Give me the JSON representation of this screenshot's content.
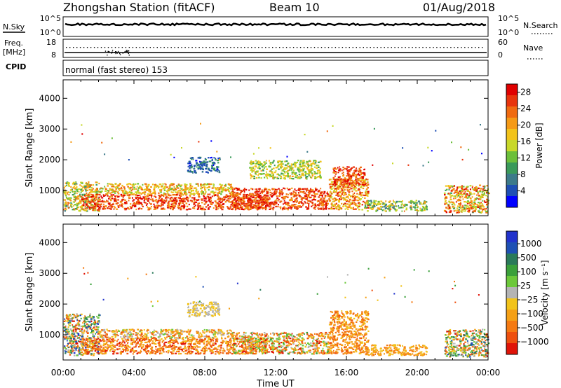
{
  "header": {
    "station": "Zhongshan Station (fitACF)",
    "beam": "Beam 10",
    "date": "01/Aug/2018"
  },
  "nsky_panel": {
    "left_label": "N.Sky",
    "left_ticks": [
      "10^5",
      "10^0"
    ],
    "right_label": "N.Search",
    "right_ticks": [
      "10^5",
      "10^0"
    ]
  },
  "freq_panel": {
    "left_label_line1": "Freq.",
    "left_label_line2": "[MHz]",
    "left_ticks": [
      "18",
      "8"
    ],
    "right_label": "Nave",
    "right_ticks": [
      "60",
      "0"
    ]
  },
  "cpid": {
    "label": "CPID",
    "mode": "normal (fast stereo) 153"
  },
  "chart_data": [
    {
      "type": "heatmap",
      "parameter": "power",
      "ylabel": "Slant Range [km]",
      "ylim": [
        180,
        4600
      ],
      "yticks": [
        "1000",
        "2000",
        "3000",
        "4000"
      ],
      "ytick_values": [
        1000,
        2000,
        3000,
        4000
      ],
      "xlim_hours": [
        0,
        24
      ],
      "colorbar": {
        "label": "Power [dB]",
        "ticks": [
          "4",
          "8",
          "12",
          "16",
          "20",
          "24",
          "28"
        ],
        "tick_values": [
          4,
          8,
          12,
          16,
          20,
          24,
          28
        ],
        "range": [
          0,
          30
        ],
        "colors": [
          "#0000ff",
          "#1e4fb4",
          "#3c7a8a",
          "#3a9a5a",
          "#6cbf3a",
          "#c8d82a",
          "#f2c31a",
          "#f59a16",
          "#f06a10",
          "#e8340c",
          "#e00000"
        ]
      },
      "regions": [
        {
          "t0": 0.0,
          "t1": 2.0,
          "r0": 350,
          "r1": 1300,
          "v0": 8,
          "v1": 24
        },
        {
          "t0": 1.0,
          "t1": 11.5,
          "r0": 400,
          "r1": 900,
          "v0": 20,
          "v1": 30
        },
        {
          "t0": 2.0,
          "t1": 9.5,
          "r0": 900,
          "r1": 1250,
          "v0": 12,
          "v1": 24
        },
        {
          "t0": 9.5,
          "t1": 15.0,
          "r0": 400,
          "r1": 1100,
          "v0": 20,
          "v1": 30
        },
        {
          "t0": 15.0,
          "t1": 17.2,
          "r0": 400,
          "r1": 1400,
          "v0": 14,
          "v1": 28
        },
        {
          "t0": 15.2,
          "t1": 17.0,
          "r0": 1200,
          "r1": 1800,
          "v0": 20,
          "v1": 30
        },
        {
          "t0": 17.0,
          "t1": 20.5,
          "r0": 350,
          "r1": 700,
          "v0": 6,
          "v1": 22
        },
        {
          "t0": 21.5,
          "t1": 24.0,
          "r0": 300,
          "r1": 1200,
          "v0": 10,
          "v1": 30
        },
        {
          "t0": 7.0,
          "t1": 8.8,
          "r0": 1600,
          "r1": 2100,
          "v0": 2,
          "v1": 10
        },
        {
          "t0": 10.5,
          "t1": 14.5,
          "r0": 1400,
          "r1": 2000,
          "v0": 10,
          "v1": 20
        }
      ]
    },
    {
      "type": "heatmap",
      "parameter": "velocity",
      "xlabel": "Time UT",
      "xticks": [
        "00:00",
        "04:00",
        "08:00",
        "12:00",
        "16:00",
        "20:00",
        "00:00"
      ],
      "xtick_values": [
        0,
        4,
        8,
        12,
        16,
        20,
        24
      ],
      "ylabel": "Slant Range [km]",
      "ylim": [
        180,
        4600
      ],
      "yticks": [
        "1000",
        "2000",
        "3000",
        "4000"
      ],
      "ytick_values": [
        1000,
        2000,
        3000,
        4000
      ],
      "xlim_hours": [
        0,
        24
      ],
      "colorbar": {
        "label": "Velocity [m s⁻¹]",
        "ticks": [
          "1000",
          "500",
          "100",
          "25",
          "−25",
          "−100",
          "−500",
          "−1000"
        ],
        "colors": [
          "#2233cc",
          "#1e50b4",
          "#2a7a5a",
          "#3aa03a",
          "#6cc83a",
          "#b4b4b4",
          "#f2c31a",
          "#f5a016",
          "#f57a12",
          "#ee500e",
          "#e01408"
        ]
      },
      "regions": [
        {
          "t0": 0.0,
          "t1": 2.0,
          "r0": 350,
          "r1": 1700,
          "v0": 0,
          "v1": 10
        },
        {
          "t0": 1.0,
          "t1": 11.5,
          "r0": 400,
          "r1": 900,
          "v0": 6,
          "v1": 10
        },
        {
          "t0": 2.0,
          "t1": 9.5,
          "r0": 900,
          "r1": 1200,
          "v0": 4,
          "v1": 9
        },
        {
          "t0": 9.5,
          "t1": 15.0,
          "r0": 400,
          "r1": 1100,
          "v0": 3,
          "v1": 10
        },
        {
          "t0": 15.0,
          "t1": 17.2,
          "r0": 400,
          "r1": 1800,
          "v0": 6,
          "v1": 9
        },
        {
          "t0": 17.0,
          "t1": 20.5,
          "r0": 350,
          "r1": 700,
          "v0": 6,
          "v1": 8
        },
        {
          "t0": 21.5,
          "t1": 24.0,
          "r0": 300,
          "r1": 1200,
          "v0": 1,
          "v1": 10
        },
        {
          "t0": 7.0,
          "t1": 8.8,
          "r0": 1600,
          "r1": 2100,
          "v0": 5,
          "v1": 6
        }
      ]
    }
  ]
}
